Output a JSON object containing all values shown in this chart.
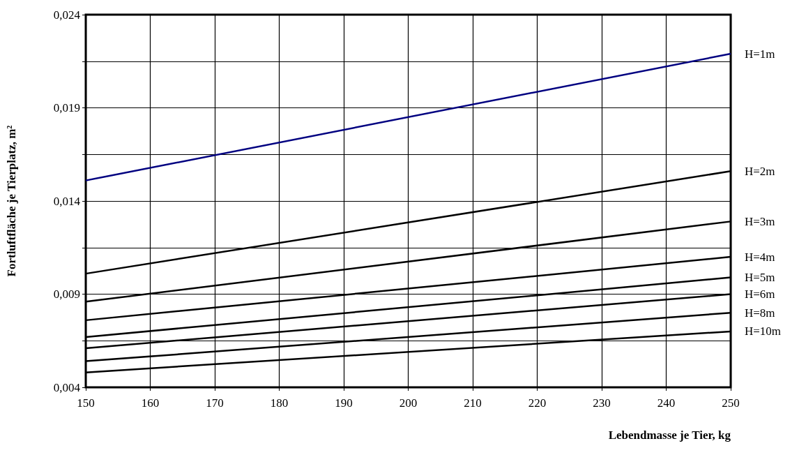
{
  "chart_data": {
    "type": "line",
    "xlabel": "Lebendmasse je Tier, kg",
    "ylabel": "Fortluftfläche je Tierplatz, m²",
    "x": [
      150,
      250
    ],
    "series": [
      {
        "name": "H=1m",
        "color": "#000080",
        "values": [
          0.0151,
          0.0219
        ]
      },
      {
        "name": "H=2m",
        "color": "#000000",
        "values": [
          0.0101,
          0.0156
        ]
      },
      {
        "name": "H=3m",
        "color": "#000000",
        "values": [
          0.0086,
          0.0129
        ]
      },
      {
        "name": "H=4m",
        "color": "#000000",
        "values": [
          0.0076,
          0.011
        ]
      },
      {
        "name": "H=5m",
        "color": "#000000",
        "values": [
          0.0067,
          0.0099
        ]
      },
      {
        "name": "H=6m",
        "color": "#000000",
        "values": [
          0.0061,
          0.009
        ]
      },
      {
        "name": "H=8m",
        "color": "#000000",
        "values": [
          0.0054,
          0.008
        ]
      },
      {
        "name": "H=10m",
        "color": "#000000",
        "values": [
          0.0048,
          0.007
        ]
      }
    ],
    "xlim": [
      150,
      250
    ],
    "xticks": [
      150,
      160,
      170,
      180,
      190,
      200,
      210,
      220,
      230,
      240,
      250
    ],
    "ylim": [
      0.004,
      0.024
    ],
    "yticks": [
      {
        "value": 0.004,
        "label": "0,004"
      },
      {
        "value": 0.0065,
        "label": null
      },
      {
        "value": 0.009,
        "label": "0,009"
      },
      {
        "value": 0.0115,
        "label": null
      },
      {
        "value": 0.014,
        "label": "0,014"
      },
      {
        "value": 0.0165,
        "label": null
      },
      {
        "value": 0.019,
        "label": "0,019"
      },
      {
        "value": 0.0215,
        "label": null
      },
      {
        "value": 0.024,
        "label": "0,024"
      }
    ],
    "grid": true,
    "marker": "none",
    "line_style": "solid",
    "legend": false
  }
}
